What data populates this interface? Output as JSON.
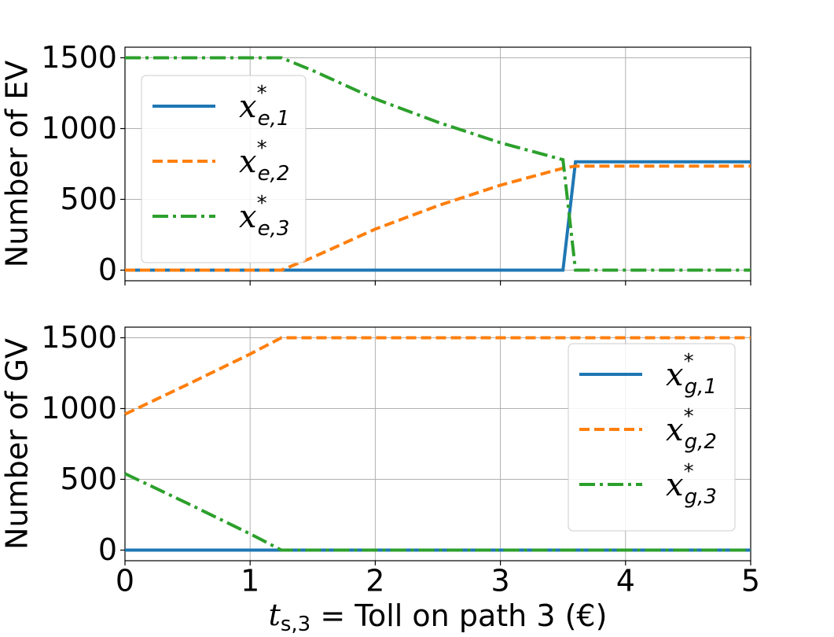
{
  "chart_data": [
    {
      "type": "line",
      "ylabel": "Number of EV",
      "x": [
        0,
        1.25,
        1.5,
        2,
        2.5,
        3,
        3.5,
        3.6,
        5
      ],
      "series": [
        {
          "name": "x*e,1",
          "color": "#1f77b4",
          "style": "solid",
          "values": [
            0,
            0,
            0,
            0,
            0,
            0,
            0,
            765,
            765
          ]
        },
        {
          "name": "x*e,2",
          "color": "#ff7f0e",
          "style": "dashed",
          "values": [
            0,
            0,
            90,
            290,
            455,
            600,
            720,
            735,
            735
          ]
        },
        {
          "name": "x*e,3",
          "color": "#2ca02c",
          "style": "dashdot",
          "values": [
            1500,
            1500,
            1410,
            1210,
            1045,
            900,
            780,
            0,
            0
          ]
        }
      ],
      "xlim": [
        0,
        5
      ],
      "xticks": [
        0,
        1,
        2,
        3,
        4,
        5
      ],
      "ylim": [
        -75,
        1575
      ],
      "yticks": [
        0,
        500,
        1000,
        1500
      ],
      "grid": true,
      "legend": "upper left"
    },
    {
      "type": "line",
      "ylabel": "Number of GV",
      "xlabel": "ts,3 =  Toll on path 3 (€)",
      "x": [
        0,
        0.5,
        1,
        1.25,
        5
      ],
      "series": [
        {
          "name": "x*g,1",
          "color": "#1f77b4",
          "style": "solid",
          "values": [
            0,
            0,
            0,
            0,
            0
          ]
        },
        {
          "name": "x*g,2",
          "color": "#ff7f0e",
          "style": "dashed",
          "values": [
            960,
            1170,
            1385,
            1500,
            1500
          ]
        },
        {
          "name": "x*g,3",
          "color": "#2ca02c",
          "style": "dashdot",
          "values": [
            540,
            330,
            115,
            0,
            0
          ]
        }
      ],
      "xlim": [
        0,
        5
      ],
      "xticks": [
        0,
        1,
        2,
        3,
        4,
        5
      ],
      "ylim": [
        -75,
        1575
      ],
      "yticks": [
        0,
        500,
        1000,
        1500
      ],
      "grid": true,
      "legend": "upper right"
    }
  ]
}
